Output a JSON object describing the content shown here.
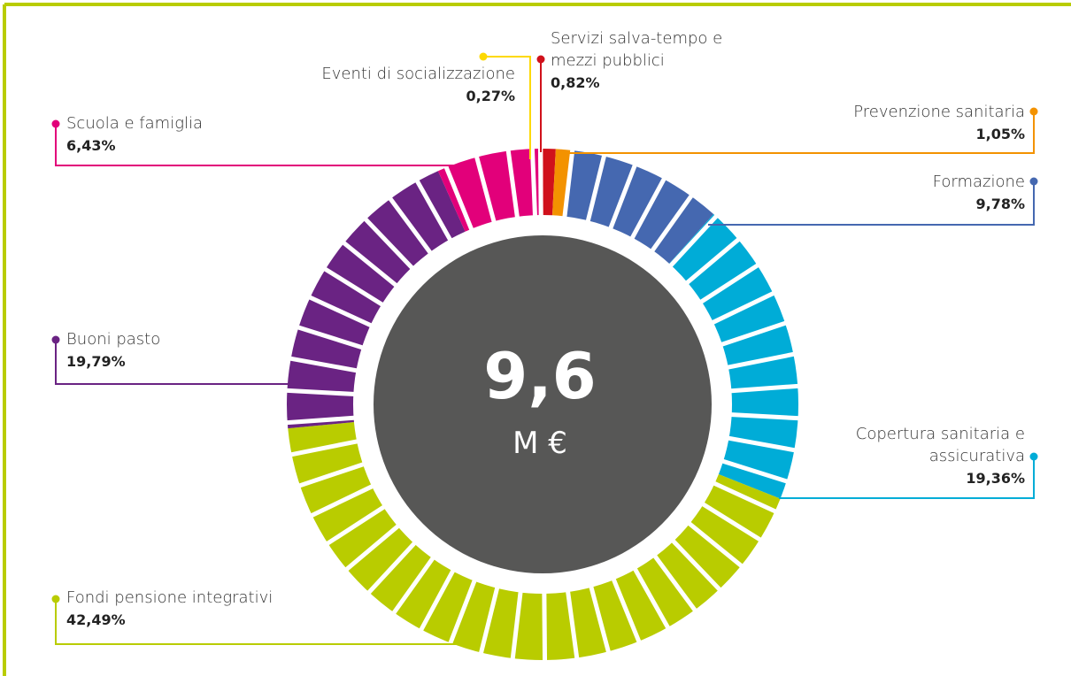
{
  "chart_data": {
    "type": "pie",
    "center_label": "9,6",
    "center_unit": "M €",
    "categories": [
      "Servizi salva-tempo e mezzi pubblici",
      "Prevenzione sanitaria",
      "Formazione",
      "Copertura sanitaria e assicurativa",
      "Fondi pensione integrativi",
      "Buoni pasto",
      "Scuola e famiglia",
      "Eventi di socializzazione"
    ],
    "values": [
      0.82,
      1.05,
      9.78,
      19.36,
      42.49,
      19.79,
      6.43,
      0.27
    ],
    "value_labels": [
      "0,82%",
      "1,05%",
      "9,78%",
      "19,36%",
      "42,49%",
      "19,79%",
      "6,43%",
      "0,27%"
    ],
    "colors": [
      "#d0111b",
      "#f39200",
      "#4568b0",
      "#00acd7",
      "#b9cc00",
      "#6a2383",
      "#e2007a",
      "#fdd900"
    ]
  }
}
